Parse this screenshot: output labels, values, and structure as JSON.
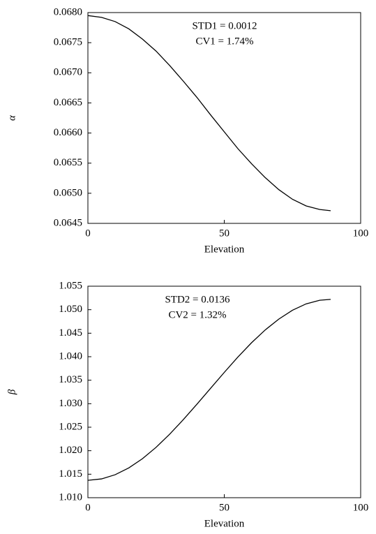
{
  "chart_data": [
    {
      "type": "line",
      "xlabel": "Elevation",
      "ylabel": "α",
      "annotations": [
        "STD1 = 0.0012",
        "CV1 = 1.74%"
      ],
      "x": [
        0,
        5,
        10,
        15,
        20,
        25,
        30,
        35,
        40,
        45,
        50,
        55,
        60,
        65,
        70,
        75,
        80,
        85,
        89
      ],
      "values": [
        0.06795,
        0.06792,
        0.06785,
        0.06773,
        0.06756,
        0.06736,
        0.06712,
        0.06686,
        0.06659,
        0.0663,
        0.06602,
        0.06574,
        0.06549,
        0.06526,
        0.06506,
        0.0649,
        0.06479,
        0.06473,
        0.06471
      ],
      "color": "#000000",
      "xlim": [
        0,
        100
      ],
      "xticks": [
        0,
        50,
        100
      ],
      "ylim": [
        0.0645,
        0.068
      ],
      "yticks": [
        0.0645,
        {
          "value": 0.065,
          "label": "0.0650"
        },
        0.0655,
        {
          "value": 0.066,
          "label": "0.0660"
        },
        0.0665,
        {
          "value": 0.067,
          "label": "0.0670"
        },
        0.0675,
        {
          "value": 0.068,
          "label": "0.0680"
        }
      ]
    },
    {
      "type": "line",
      "xlabel": "Elevation",
      "ylabel": "β",
      "annotations": [
        "STD2 = 0.0136",
        "CV2 = 1.32%"
      ],
      "x": [
        0,
        5,
        10,
        15,
        20,
        25,
        30,
        35,
        40,
        45,
        50,
        55,
        60,
        65,
        70,
        75,
        80,
        85,
        89
      ],
      "values": [
        1.0137,
        1.014,
        1.01489,
        1.01634,
        1.0183,
        1.02072,
        1.02352,
        1.02662,
        1.02991,
        1.03329,
        1.03666,
        1.03993,
        1.04297,
        1.04569,
        1.048,
        1.04989,
        1.05124,
        1.05201,
        1.0522
      ],
      "color": "#000000",
      "xlim": [
        0,
        100
      ],
      "xticks": [
        0,
        50,
        100
      ],
      "ylim": [
        1.01,
        1.055
      ],
      "yticks": [
        {
          "value": 1.01,
          "label": "1.010"
        },
        1.015,
        {
          "value": 1.02,
          "label": "1.020"
        },
        1.025,
        {
          "value": 1.03,
          "label": "1.030"
        },
        1.035,
        {
          "value": 1.04,
          "label": "1.040"
        },
        1.045,
        {
          "value": 1.05,
          "label": "1.050"
        },
        1.055
      ]
    }
  ]
}
